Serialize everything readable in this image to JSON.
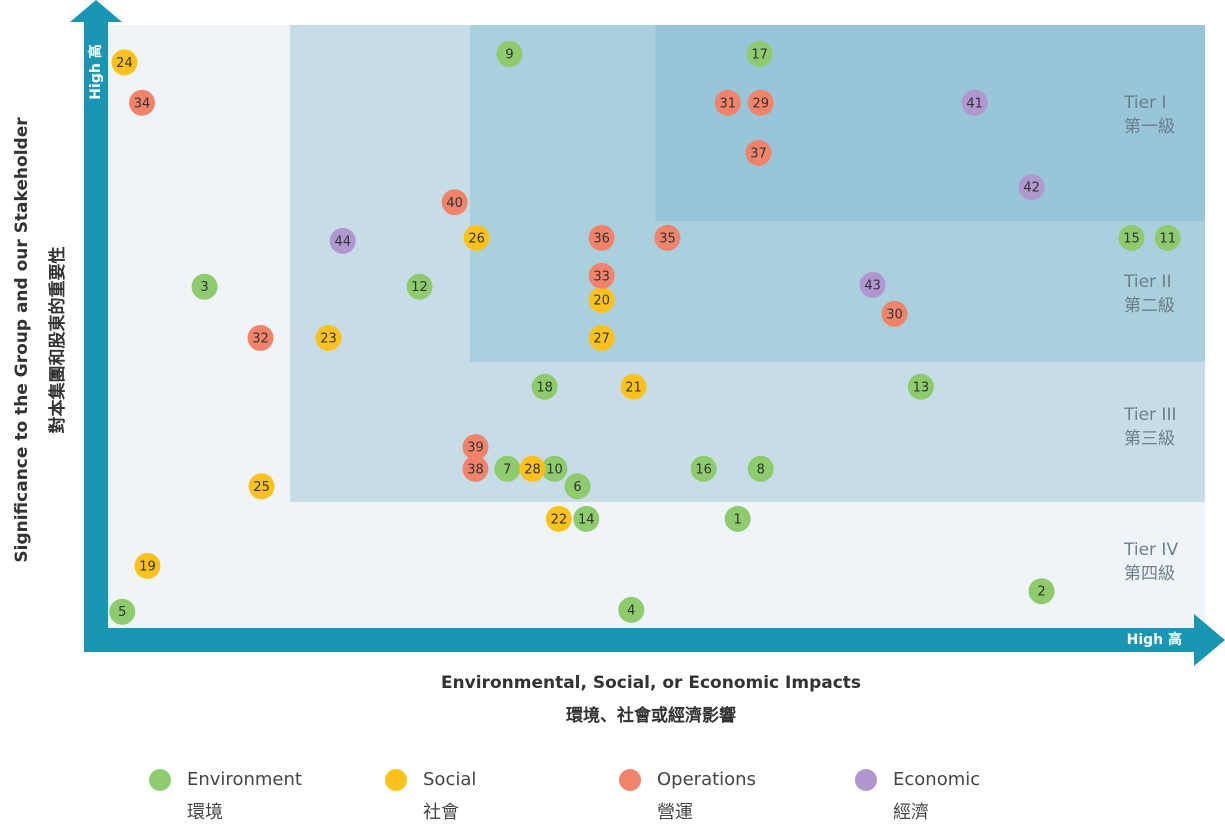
{
  "chart_data": {
    "type": "scatter",
    "x_axis_title": "Environmental, Social, or Economic Impacts",
    "x_axis_title_zh": "環境、社會或經濟影響",
    "y_axis_title": "Significance to the Group and our Stakeholder",
    "y_axis_title_zh": "對本集團和股東的重要性",
    "x_high_label": "High 高",
    "y_high_label": "High 高",
    "xlim": [
      0,
      100
    ],
    "ylim": [
      0,
      100
    ],
    "axis_color": "#1a96b5",
    "tiers": [
      {
        "label": "Tier IV",
        "label_zh": "第四級",
        "x0": 0,
        "y0": 0,
        "color": "#eef4f8"
      },
      {
        "label": "Tier III",
        "label_zh": "第三級",
        "x0": 16.6,
        "y0": 20.9,
        "color": "#c6dde8"
      },
      {
        "label": "Tier II",
        "label_zh": "第二級",
        "x0": 33.0,
        "y0": 44.1,
        "color": "#aacfdd"
      },
      {
        "label": "Tier I",
        "label_zh": "第一級",
        "x0": 49.9,
        "y0": 67.5,
        "color": "#98c5d8"
      }
    ],
    "series": [
      {
        "name": "Environment",
        "name_zh": "環境",
        "color": "#8dcb6d",
        "labels": [
          9,
          17,
          15,
          11,
          3,
          12,
          18,
          13,
          7,
          10,
          6,
          16,
          8,
          14,
          1,
          2,
          5,
          4
        ],
        "x": [
          36.6,
          59.4,
          93.3,
          96.6,
          8.8,
          28.4,
          39.8,
          74.1,
          36.4,
          40.7,
          42.8,
          54.3,
          59.5,
          43.6,
          57.4,
          85.1,
          1.3,
          47.7
        ],
        "y": [
          95.2,
          95.2,
          64.7,
          64.7,
          56.6,
          56.6,
          40.0,
          40.0,
          26.4,
          26.4,
          23.5,
          26.4,
          26.4,
          18.1,
          18.1,
          6.1,
          2.7,
          3.0
        ]
      },
      {
        "name": "Social",
        "name_zh": "社會",
        "color": "#fcc21b",
        "labels": [
          24,
          26,
          20,
          23,
          27,
          21,
          28,
          25,
          22,
          19
        ],
        "x": [
          1.5,
          33.6,
          45.0,
          20.1,
          45.0,
          47.9,
          38.7,
          14.0,
          41.1,
          3.6
        ],
        "y": [
          93.8,
          64.7,
          54.4,
          48.1,
          48.1,
          40.0,
          26.4,
          23.5,
          18.1,
          10.3
        ]
      },
      {
        "name": "Operations",
        "name_zh": "營運",
        "color": "#f2836b",
        "labels": [
          34,
          31,
          29,
          37,
          40,
          36,
          35,
          33,
          30,
          32,
          39,
          38
        ],
        "x": [
          3.1,
          56.5,
          59.5,
          59.3,
          31.6,
          45.0,
          51.0,
          45.0,
          71.7,
          13.9,
          33.5,
          33.5
        ],
        "y": [
          87.1,
          87.1,
          87.1,
          78.8,
          70.6,
          64.7,
          64.7,
          58.4,
          52.1,
          48.1,
          30.0,
          26.4
        ]
      },
      {
        "name": "Economic",
        "name_zh": "經濟",
        "color": "#b197d0",
        "labels": [
          41,
          42,
          44,
          43
        ],
        "x": [
          79.0,
          84.2,
          21.4,
          69.7
        ],
        "y": [
          87.1,
          73.1,
          64.2,
          56.9
        ]
      }
    ]
  }
}
